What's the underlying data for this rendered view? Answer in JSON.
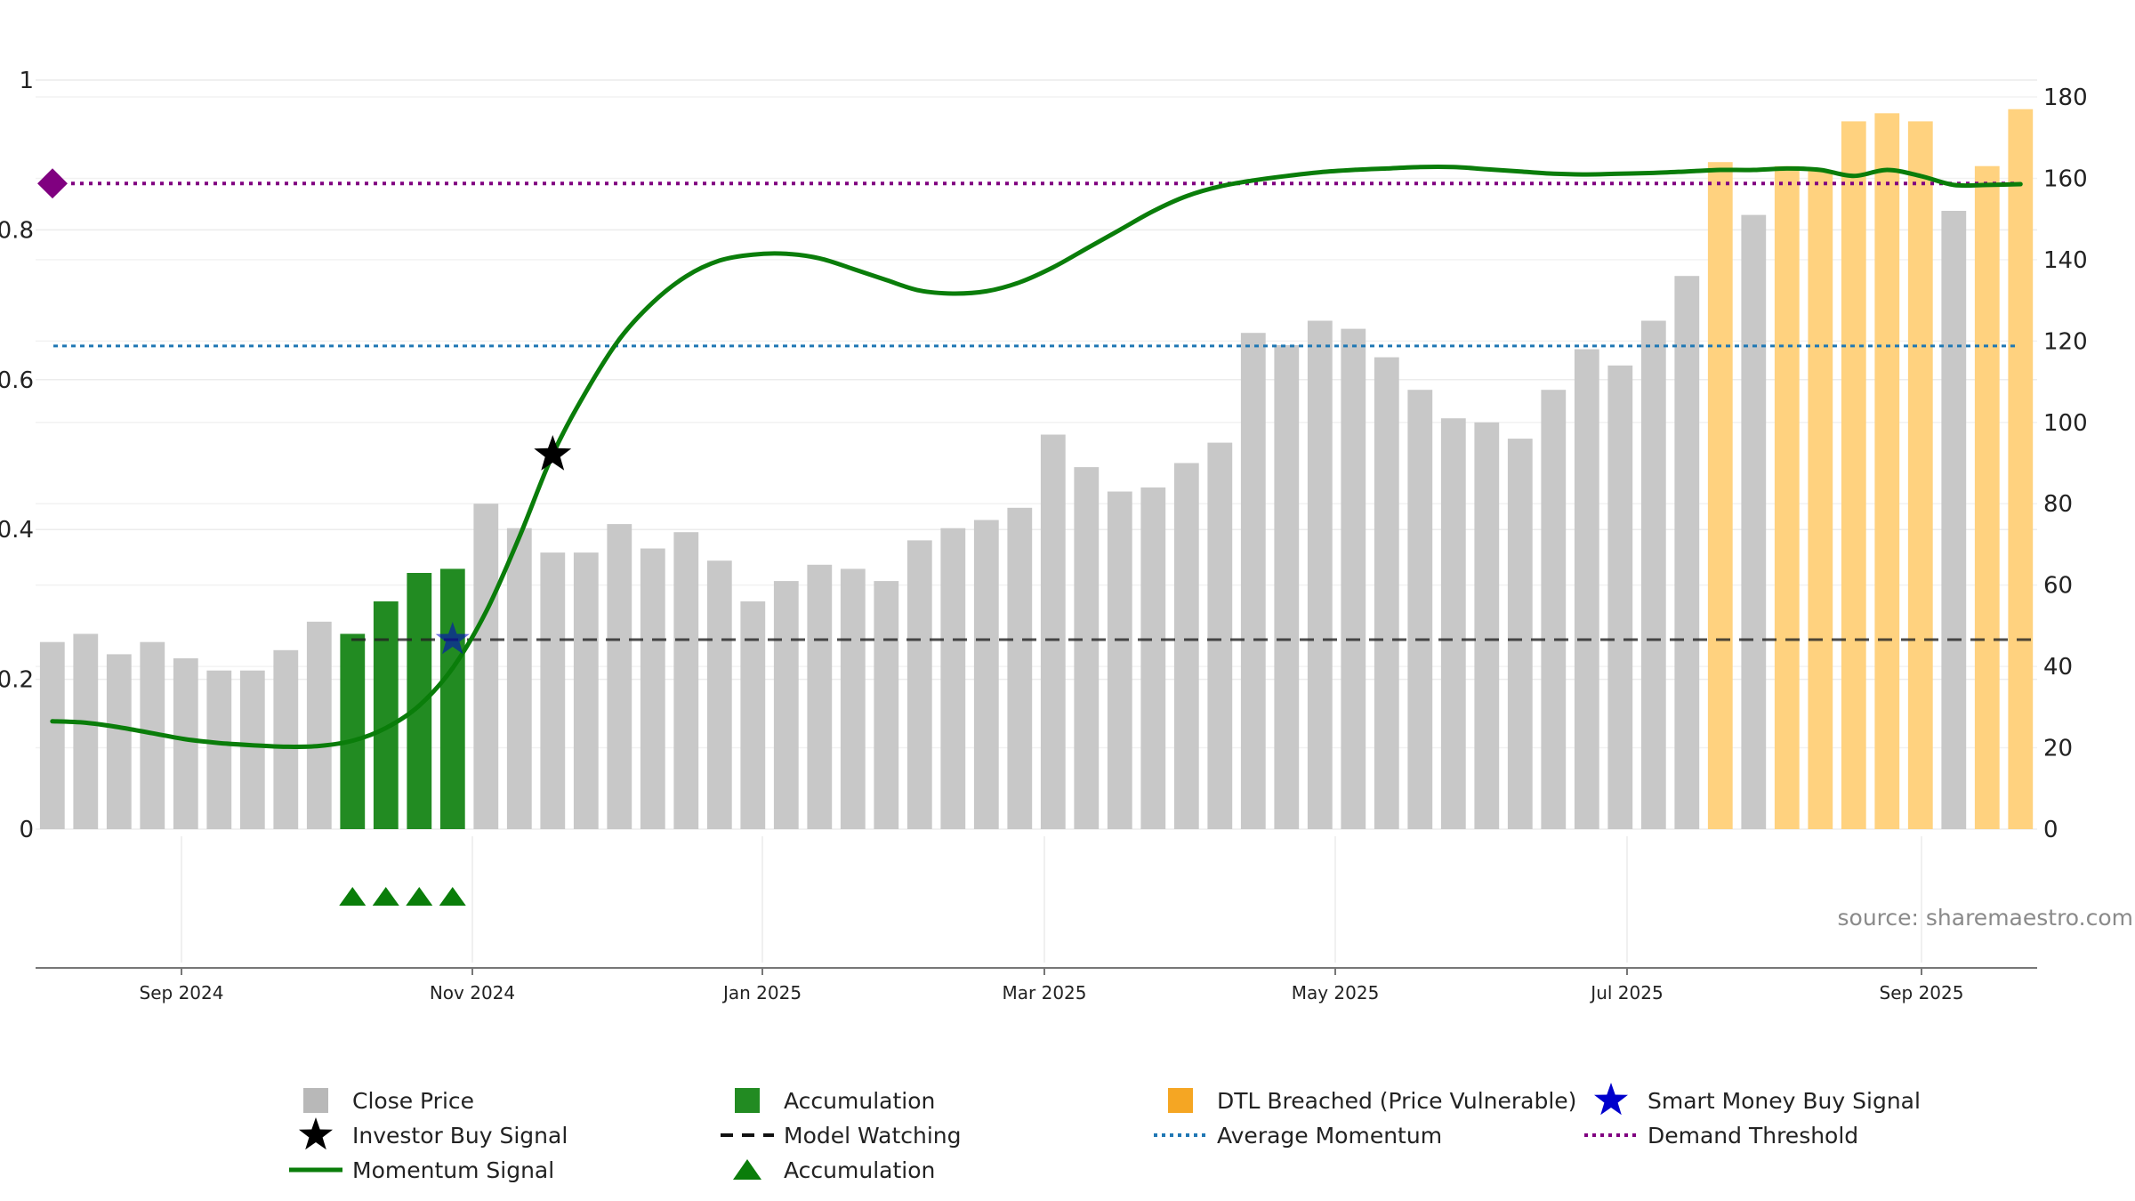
{
  "chart_data": {
    "type": "bar",
    "source": "source: sharemaestro.com",
    "x_ticks": [
      "Sep 2024",
      "Nov 2024",
      "Jan 2025",
      "Mar 2025",
      "May 2025",
      "Jul 2025",
      "Sep 2025"
    ],
    "left_axis": {
      "ticks": [
        "0",
        "0.2",
        "0.4",
        "0.6",
        "0.8",
        "1"
      ],
      "ylim": [
        0,
        1
      ]
    },
    "right_axis": {
      "ticks": [
        "0",
        "20",
        "40",
        "60",
        "80",
        "100",
        "120",
        "140",
        "160",
        "180"
      ],
      "ylim": [
        0,
        180
      ]
    },
    "bar_categories": [
      "gray",
      "gray",
      "gray",
      "gray",
      "gray",
      "gray",
      "gray",
      "gray",
      "gray",
      "green",
      "green",
      "green",
      "green",
      "gray",
      "gray",
      "gray",
      "gray",
      "gray",
      "gray",
      "gray",
      "gray",
      "gray",
      "gray",
      "gray",
      "gray",
      "gray",
      "gray",
      "gray",
      "gray",
      "gray",
      "gray",
      "gray",
      "gray",
      "gray",
      "gray",
      "gray",
      "gray",
      "gray",
      "gray",
      "gray",
      "gray",
      "gray",
      "gray",
      "gray",
      "gray",
      "gray",
      "gray",
      "gray",
      "gray",
      "gray",
      "orange",
      "gray",
      "orange",
      "orange",
      "orange",
      "orange",
      "orange",
      "gray",
      "orange",
      "orange"
    ],
    "close_price": [
      46,
      48,
      43,
      46,
      42,
      39,
      39,
      44,
      51,
      48,
      56,
      63,
      64,
      80,
      74,
      68,
      68,
      75,
      69,
      73,
      66,
      56,
      61,
      65,
      64,
      61,
      71,
      74,
      76,
      79,
      97,
      89,
      83,
      84,
      90,
      95,
      122,
      119,
      125,
      123,
      116,
      108,
      101,
      100,
      96,
      108,
      118,
      114,
      125,
      136,
      164,
      151,
      163,
      162,
      174,
      176,
      174,
      152,
      163,
      177
    ],
    "momentum": [
      0.144,
      0.142,
      0.136,
      0.128,
      0.12,
      0.115,
      0.112,
      0.11,
      0.111,
      0.118,
      0.135,
      0.165,
      0.215,
      0.29,
      0.39,
      0.5,
      0.584,
      0.654,
      0.703,
      0.738,
      0.759,
      0.767,
      0.768,
      0.762,
      0.748,
      0.733,
      0.719,
      0.715,
      0.718,
      0.73,
      0.75,
      0.775,
      0.8,
      0.825,
      0.845,
      0.858,
      0.866,
      0.872,
      0.877,
      0.88,
      0.882,
      0.884,
      0.884,
      0.881,
      0.878,
      0.875,
      0.874,
      0.875,
      0.876,
      0.878,
      0.88,
      0.88,
      0.882,
      0.88,
      0.872,
      0.88,
      0.872,
      0.86,
      0.86,
      0.861
    ],
    "model_watching_level": 0.253,
    "average_momentum_level": 0.645,
    "demand_threshold_level": 0.862,
    "accumulation_marker_bars": [
      9,
      10,
      11,
      12
    ],
    "smart_money_signal": {
      "bar": 12,
      "value": 0.253
    },
    "investor_buy_signal": {
      "bar": 15,
      "value": 0.5
    },
    "colors": {
      "close_price": "#c8c8c8",
      "accumulation": "#228b22",
      "dtl_breached": "#ffd27f",
      "momentum": "#0a7d0a",
      "model_watching": "#222222",
      "average_momentum": "#1f77b4",
      "demand_threshold": "#800080",
      "smart_money": "#0000cc",
      "investor": "#000000",
      "accumulation_marker": "#0a7d0a"
    },
    "legend": [
      {
        "label": "Close Price",
        "symbol": "square",
        "color": "#b8b8b8"
      },
      {
        "label": "Accumulation",
        "symbol": "square",
        "color": "#228b22"
      },
      {
        "label": "DTL Breached (Price Vulnerable)",
        "symbol": "square",
        "color": "#f5a623"
      },
      {
        "label": "Smart Money Buy Signal",
        "symbol": "star",
        "color": "#0000cc"
      },
      {
        "label": "Investor Buy Signal",
        "symbol": "star",
        "color": "#000000"
      },
      {
        "label": "Model Watching",
        "symbol": "dash",
        "color": "#111111"
      },
      {
        "label": "Average Momentum",
        "symbol": "dot",
        "color": "#1f77b4"
      },
      {
        "label": "Demand Threshold",
        "symbol": "dot",
        "color": "#800080"
      },
      {
        "label": "Momentum Signal",
        "symbol": "line",
        "color": "#0a7d0a"
      },
      {
        "label": "Accumulation",
        "symbol": "triangle",
        "color": "#0a7d0a"
      }
    ]
  }
}
